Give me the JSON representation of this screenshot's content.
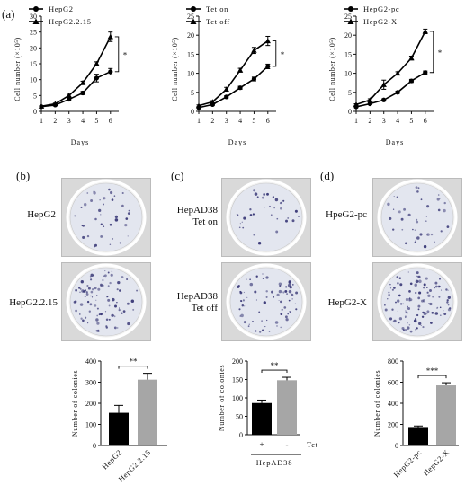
{
  "panels": {
    "a": "(a)",
    "b": "(b)",
    "c": "(c)",
    "d": "(d)"
  },
  "dishes": {
    "b": [
      {
        "label": "HepG2"
      },
      {
        "label": "HepG2.2.15"
      }
    ],
    "c": [
      {
        "label": "HepAD38\nTet on"
      },
      {
        "label": "HepAD38\nTet off"
      }
    ],
    "d": [
      {
        "label": "HpeG2-pc"
      },
      {
        "label": "HepG2-X"
      }
    ]
  },
  "colors": {
    "black_bar": "#000000",
    "grey_bar": "#a6a6a6",
    "dish_bg": "#d9d9d9",
    "dot": "#3b3a78"
  },
  "chart_data": [
    {
      "id": "a1",
      "type": "line",
      "xlabel": "Days",
      "ylabel": "Cell number (×10⁵)",
      "x": [
        1,
        2,
        3,
        4,
        5,
        6
      ],
      "xlim": [
        1,
        6.6
      ],
      "ylim": [
        0,
        30
      ],
      "xticks": [
        "1",
        "2",
        "3",
        "4",
        "5",
        "6"
      ],
      "yticks": [
        "0",
        "5",
        "10",
        "15",
        "20",
        "25",
        "30"
      ],
      "series": [
        {
          "name": "HepG2",
          "marker": "circle",
          "values": [
            1.5,
            2.0,
            3.8,
            5.8,
            10.5,
            12.5
          ],
          "errors": [
            0.2,
            0.2,
            0.4,
            0.5,
            1.2,
            1.0
          ]
        },
        {
          "name": "HepG2.2.15",
          "marker": "triangle",
          "values": [
            1.6,
            2.4,
            5.0,
            9.0,
            15.0,
            23.5
          ],
          "errors": [
            0.2,
            0.2,
            0.4,
            0.5,
            0.6,
            1.5
          ]
        }
      ],
      "significance": "*",
      "legend": "top-left"
    },
    {
      "id": "a2",
      "type": "line",
      "xlabel": "Days",
      "ylabel": "Cell number (×10⁵)",
      "x": [
        1,
        2,
        3,
        4,
        5,
        6
      ],
      "xlim": [
        1,
        6.6
      ],
      "ylim": [
        0,
        25
      ],
      "xticks": [
        "1",
        "2",
        "3",
        "4",
        "5",
        "6"
      ],
      "yticks": [
        "0",
        "5",
        "10",
        "15",
        "20",
        "25"
      ],
      "series": [
        {
          "name": "Tet on",
          "marker": "circle",
          "values": [
            1.0,
            1.8,
            3.8,
            6.2,
            8.5,
            11.8
          ],
          "errors": [
            0.2,
            0.2,
            0.3,
            0.4,
            0.5,
            0.6
          ]
        },
        {
          "name": "Tet off",
          "marker": "triangle",
          "values": [
            1.5,
            2.5,
            5.8,
            10.8,
            16.0,
            18.5
          ],
          "errors": [
            0.2,
            0.3,
            0.5,
            0.5,
            0.8,
            1.2
          ]
        }
      ],
      "significance": "*",
      "legend": "top-left"
    },
    {
      "id": "a3",
      "type": "line",
      "xlabel": "Days",
      "ylabel": "Cell number (×10⁵)",
      "x": [
        1,
        2,
        3,
        4,
        5,
        6
      ],
      "xlim": [
        1,
        6.6
      ],
      "ylim": [
        0,
        25
      ],
      "xticks": [
        "1",
        "2",
        "3",
        "4",
        "5",
        "6"
      ],
      "yticks": [
        "0",
        "5",
        "10",
        "15",
        "20",
        "25"
      ],
      "series": [
        {
          "name": "HepG2-pc",
          "marker": "circle",
          "values": [
            1.2,
            2.0,
            3.0,
            5.0,
            8.0,
            10.2
          ],
          "errors": [
            0.2,
            0.2,
            0.3,
            0.3,
            0.4,
            0.4
          ]
        },
        {
          "name": "HepG2-X",
          "marker": "triangle",
          "values": [
            1.8,
            3.0,
            7.0,
            10.0,
            14.0,
            21.0
          ],
          "errors": [
            0.2,
            0.3,
            1.2,
            0.4,
            0.5,
            0.6
          ]
        }
      ],
      "significance": "*",
      "legend": "top-left"
    },
    {
      "id": "b",
      "type": "bar",
      "ylabel": "Number of colonies",
      "categories": [
        "HepG2",
        "HepG2.2.15"
      ],
      "values": [
        155,
        312
      ],
      "errors": [
        35,
        30
      ],
      "ylim": [
        0,
        400
      ],
      "yticks": [
        "0",
        "100",
        "200",
        "300",
        "400"
      ],
      "significance": "**"
    },
    {
      "id": "c",
      "type": "bar",
      "ylabel": "Number of colonies",
      "categories": [
        "+",
        "-"
      ],
      "values": [
        86,
        148
      ],
      "errors": [
        8,
        8
      ],
      "ylim": [
        0,
        200
      ],
      "yticks": [
        "0",
        "50",
        "100",
        "150",
        "200"
      ],
      "significance": "**",
      "condition_label": "Tet",
      "group_label": "HepAD38"
    },
    {
      "id": "d",
      "type": "bar",
      "ylabel": "Number of colonies",
      "categories": [
        "HepG2-pc",
        "HepG2-X"
      ],
      "values": [
        175,
        570
      ],
      "errors": [
        10,
        25
      ],
      "ylim": [
        0,
        800
      ],
      "yticks": [
        "0",
        "200",
        "400",
        "600",
        "800"
      ],
      "significance": "***"
    }
  ]
}
